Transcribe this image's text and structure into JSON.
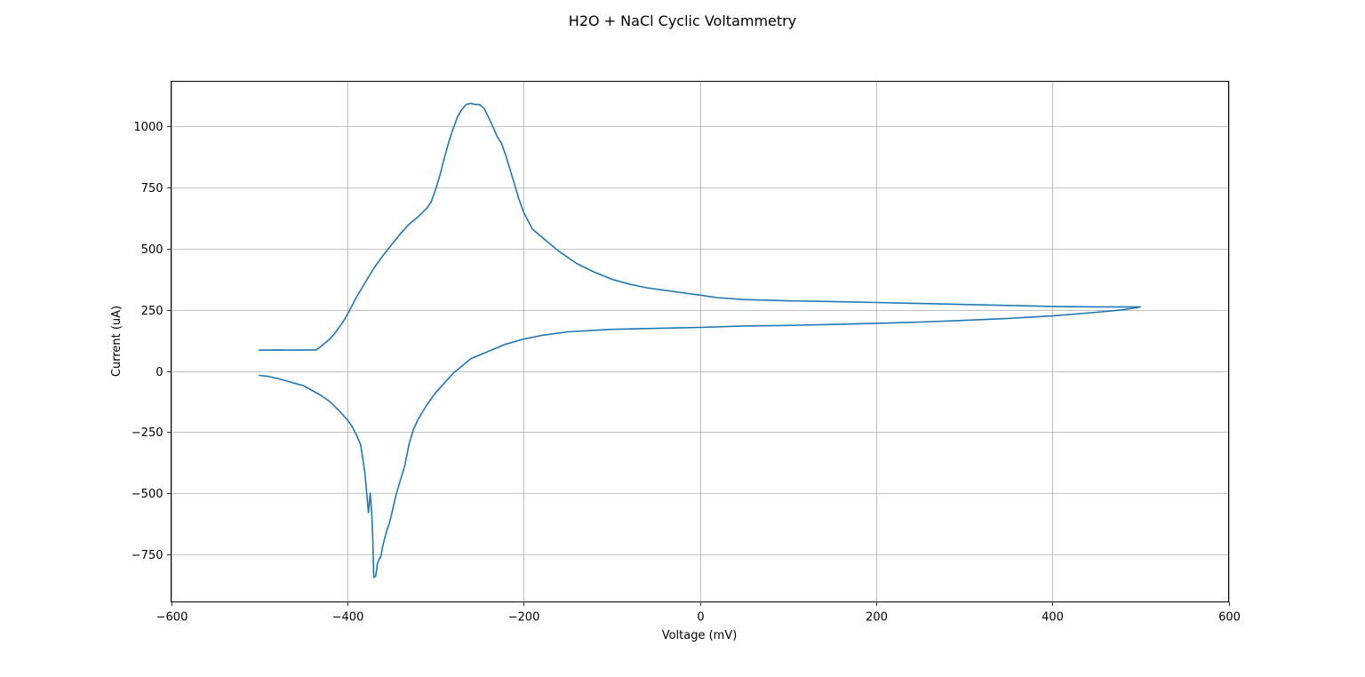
{
  "chart_data": {
    "type": "line",
    "title": "H2O + NaCl Cyclic Voltammetry",
    "xlabel": "Voltage (mV)",
    "ylabel": "Current (uA)",
    "xlim": [
      -600,
      600
    ],
    "ylim": [
      -945,
      1185
    ],
    "xticks": [
      -600,
      -400,
      -200,
      0,
      200,
      400,
      600
    ],
    "xtick_labels": [
      "−600",
      "−400",
      "−200",
      "0",
      "200",
      "400",
      "600"
    ],
    "yticks": [
      -750,
      -500,
      -250,
      0,
      250,
      500,
      750,
      1000
    ],
    "ytick_labels": [
      "−750",
      "−500",
      "−250",
      "0",
      "250",
      "500",
      "750",
      "1000"
    ],
    "grid": true,
    "line_color": "#1f77b4",
    "series": [
      {
        "x": [
          -500,
          -490,
          -480,
          -470,
          -460,
          -450,
          -440,
          -435,
          -430,
          -425,
          -420,
          -415,
          -410,
          -405,
          -400,
          -395,
          -390,
          -380,
          -370,
          -360,
          -350,
          -340,
          -330,
          -320,
          -310,
          -305,
          -300,
          -295,
          -290,
          -285,
          -280,
          -275,
          -270,
          -265,
          -260,
          -255,
          -250,
          -245,
          -240,
          -235,
          -230,
          -225,
          -220,
          -215,
          -210,
          -205,
          -200,
          -195,
          -190,
          -180,
          -170,
          -160,
          -150,
          -140,
          -120,
          -100,
          -80,
          -60,
          -40,
          -20,
          0,
          20,
          50,
          100,
          150,
          200,
          250,
          300,
          350,
          400,
          450,
          490,
          500,
          495,
          480,
          450,
          400,
          350,
          300,
          250,
          200,
          150,
          100,
          50,
          0,
          -50,
          -100,
          -150,
          -180,
          -200,
          -220,
          -240,
          -260,
          -270,
          -280,
          -290,
          -300,
          -310,
          -320,
          -325,
          -330,
          -335,
          -340,
          -345,
          -350,
          -352,
          -355,
          -358,
          -360,
          -362,
          -364,
          -366,
          -367,
          -368,
          -370,
          -371,
          -372,
          -373,
          -374,
          -375,
          -376,
          -378,
          -380,
          -382,
          -385,
          -390,
          -395,
          -400,
          -410,
          -420,
          -430,
          -440,
          -450,
          -460,
          -470,
          -480,
          -490,
          -500
        ],
        "y": [
          85,
          85,
          86,
          85,
          85,
          86,
          86,
          86,
          100,
          115,
          130,
          150,
          175,
          200,
          230,
          265,
          300,
          360,
          420,
          470,
          515,
          560,
          600,
          630,
          665,
          690,
          740,
          800,
          870,
          935,
          990,
          1040,
          1070,
          1090,
          1095,
          1090,
          1090,
          1075,
          1040,
          1000,
          960,
          930,
          880,
          820,
          760,
          700,
          650,
          615,
          580,
          550,
          520,
          490,
          465,
          440,
          405,
          375,
          355,
          340,
          330,
          320,
          310,
          300,
          292,
          287,
          284,
          280,
          276,
          272,
          268,
          264,
          262,
          262,
          262,
          258,
          250,
          240,
          225,
          215,
          207,
          200,
          195,
          190,
          186,
          184,
          178,
          174,
          170,
          160,
          145,
          130,
          110,
          80,
          50,
          20,
          -10,
          -50,
          -90,
          -140,
          -200,
          -240,
          -300,
          -390,
          -450,
          -510,
          -590,
          -620,
          -650,
          -690,
          -720,
          -760,
          -770,
          -790,
          -820,
          -840,
          -845,
          -700,
          -600,
          -550,
          -500,
          -540,
          -580,
          -500,
          -420,
          -370,
          -300,
          -260,
          -225,
          -200,
          -160,
          -125,
          -100,
          -80,
          -60,
          -50,
          -40,
          -30,
          -22,
          -18
        ]
      }
    ]
  }
}
